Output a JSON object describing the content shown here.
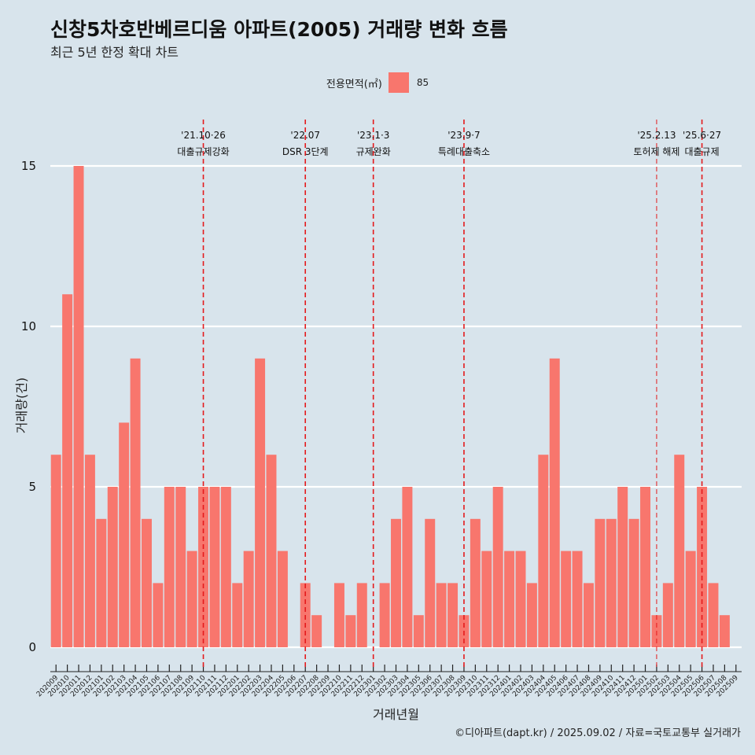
{
  "title": "신창5차호반베르디움 아파트(2005) 거래량 변화 흐름",
  "subtitle": "최근 5년 한정 확대 차트",
  "legend": {
    "title": "전용면적(㎡)",
    "label": "85",
    "color": "#f8766d"
  },
  "caption": "©디아파트(dapt.kr) / 2025.09.02 / 자료=국토교통부 실거래가",
  "chart_data": {
    "type": "bar",
    "xlabel": "거래년월",
    "ylabel": "거래량(건)",
    "ylim": [
      0,
      15
    ],
    "yticks": [
      0,
      5,
      10,
      15
    ],
    "grid": "horizontal",
    "legend_position": "top",
    "bar_color": "#f8766d",
    "categories": [
      "202009",
      "202010",
      "202011",
      "202012",
      "202101",
      "202102",
      "202103",
      "202104",
      "202105",
      "202106",
      "202107",
      "202108",
      "202109",
      "202110",
      "202111",
      "202112",
      "202201",
      "202202",
      "202203",
      "202204",
      "202205",
      "202206",
      "202207",
      "202208",
      "202209",
      "202210",
      "202211",
      "202212",
      "202301",
      "202302",
      "202303",
      "202304",
      "202305",
      "202306",
      "202307",
      "202308",
      "202309",
      "202310",
      "202311",
      "202312",
      "202401",
      "202402",
      "202403",
      "202404",
      "202405",
      "202406",
      "202407",
      "202408",
      "202409",
      "202410",
      "202411",
      "202412",
      "202501",
      "202502",
      "202503",
      "202504",
      "202505",
      "202506",
      "202507",
      "202508",
      "202509"
    ],
    "series": [
      {
        "name": "85",
        "values": [
          6,
          11,
          15,
          6,
          4,
          5,
          7,
          9,
          4,
          2,
          5,
          5,
          3,
          5,
          5,
          5,
          2,
          3,
          9,
          6,
          3,
          0,
          2,
          1,
          0,
          2,
          1,
          2,
          0,
          2,
          4,
          5,
          1,
          4,
          2,
          2,
          1,
          4,
          3,
          5,
          3,
          3,
          2,
          6,
          9,
          3,
          3,
          2,
          4,
          4,
          5,
          4,
          5,
          1,
          2,
          6,
          3,
          5,
          2,
          1,
          0
        ]
      }
    ],
    "annotations": [
      {
        "at": "202110",
        "lines": [
          "'21.10·26",
          "대출규제강화"
        ],
        "style": "dashed"
      },
      {
        "at": "202207",
        "lines": [
          "'22.07",
          "DSR 3단계"
        ],
        "style": "dashed"
      },
      {
        "at": "202301",
        "lines": [
          "'23.1·3",
          "규제완화"
        ],
        "style": "dashed"
      },
      {
        "at": "202309",
        "lines": [
          "'23.9·7",
          "특례대출축소"
        ],
        "style": "dashed"
      },
      {
        "at": "202502",
        "lines": [
          "'25.2.13",
          "토허제 해제"
        ],
        "style": "dashed-thin"
      },
      {
        "at": "202506",
        "lines": [
          "'25.6·27",
          "대출규제"
        ],
        "style": "dashed"
      }
    ]
  }
}
